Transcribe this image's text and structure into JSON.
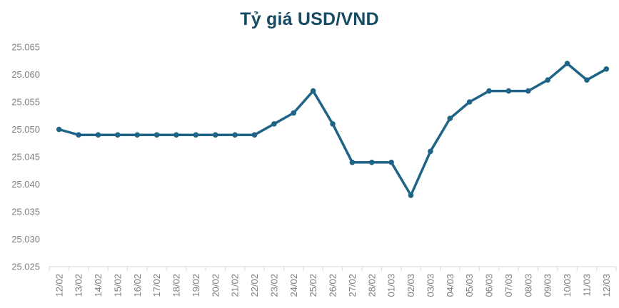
{
  "chart_data": {
    "type": "line",
    "title": "Tỷ giá USD/VND",
    "categories": [
      "12/02",
      "13/02",
      "14/02",
      "15/02",
      "16/02",
      "17/02",
      "18/02",
      "19/02",
      "20/02",
      "21/02",
      "22/02",
      "23/02",
      "24/02",
      "25/02",
      "26/02",
      "27/02",
      "28/02",
      "01/03",
      "02/03",
      "03/03",
      "04/03",
      "05/03",
      "06/03",
      "07/03",
      "08/03",
      "09/03",
      "10/03",
      "11/03",
      "12/03"
    ],
    "values": [
      25.05,
      25.049,
      25.049,
      25.049,
      25.049,
      25.049,
      25.049,
      25.049,
      25.049,
      25.049,
      25.049,
      25.051,
      25.053,
      25.057,
      25.051,
      25.044,
      25.044,
      25.044,
      25.038,
      25.046,
      25.052,
      25.055,
      25.057,
      25.057,
      25.057,
      25.059,
      25.062,
      25.059,
      25.061
    ],
    "xlabel": "",
    "ylabel": "",
    "ylim": [
      25.025,
      25.065
    ],
    "y_tick_labels": [
      "25.065",
      "25.060",
      "25.055",
      "25.050",
      "25.045",
      "25.040",
      "25.035",
      "25.030",
      "25.025"
    ],
    "grid": false,
    "legend": "none",
    "marker": "circle",
    "colors": {
      "title": "#154b63",
      "line": "#1f6387",
      "axis_labels": "#7f7f7f",
      "axis_line": "#d9d9d9"
    }
  }
}
